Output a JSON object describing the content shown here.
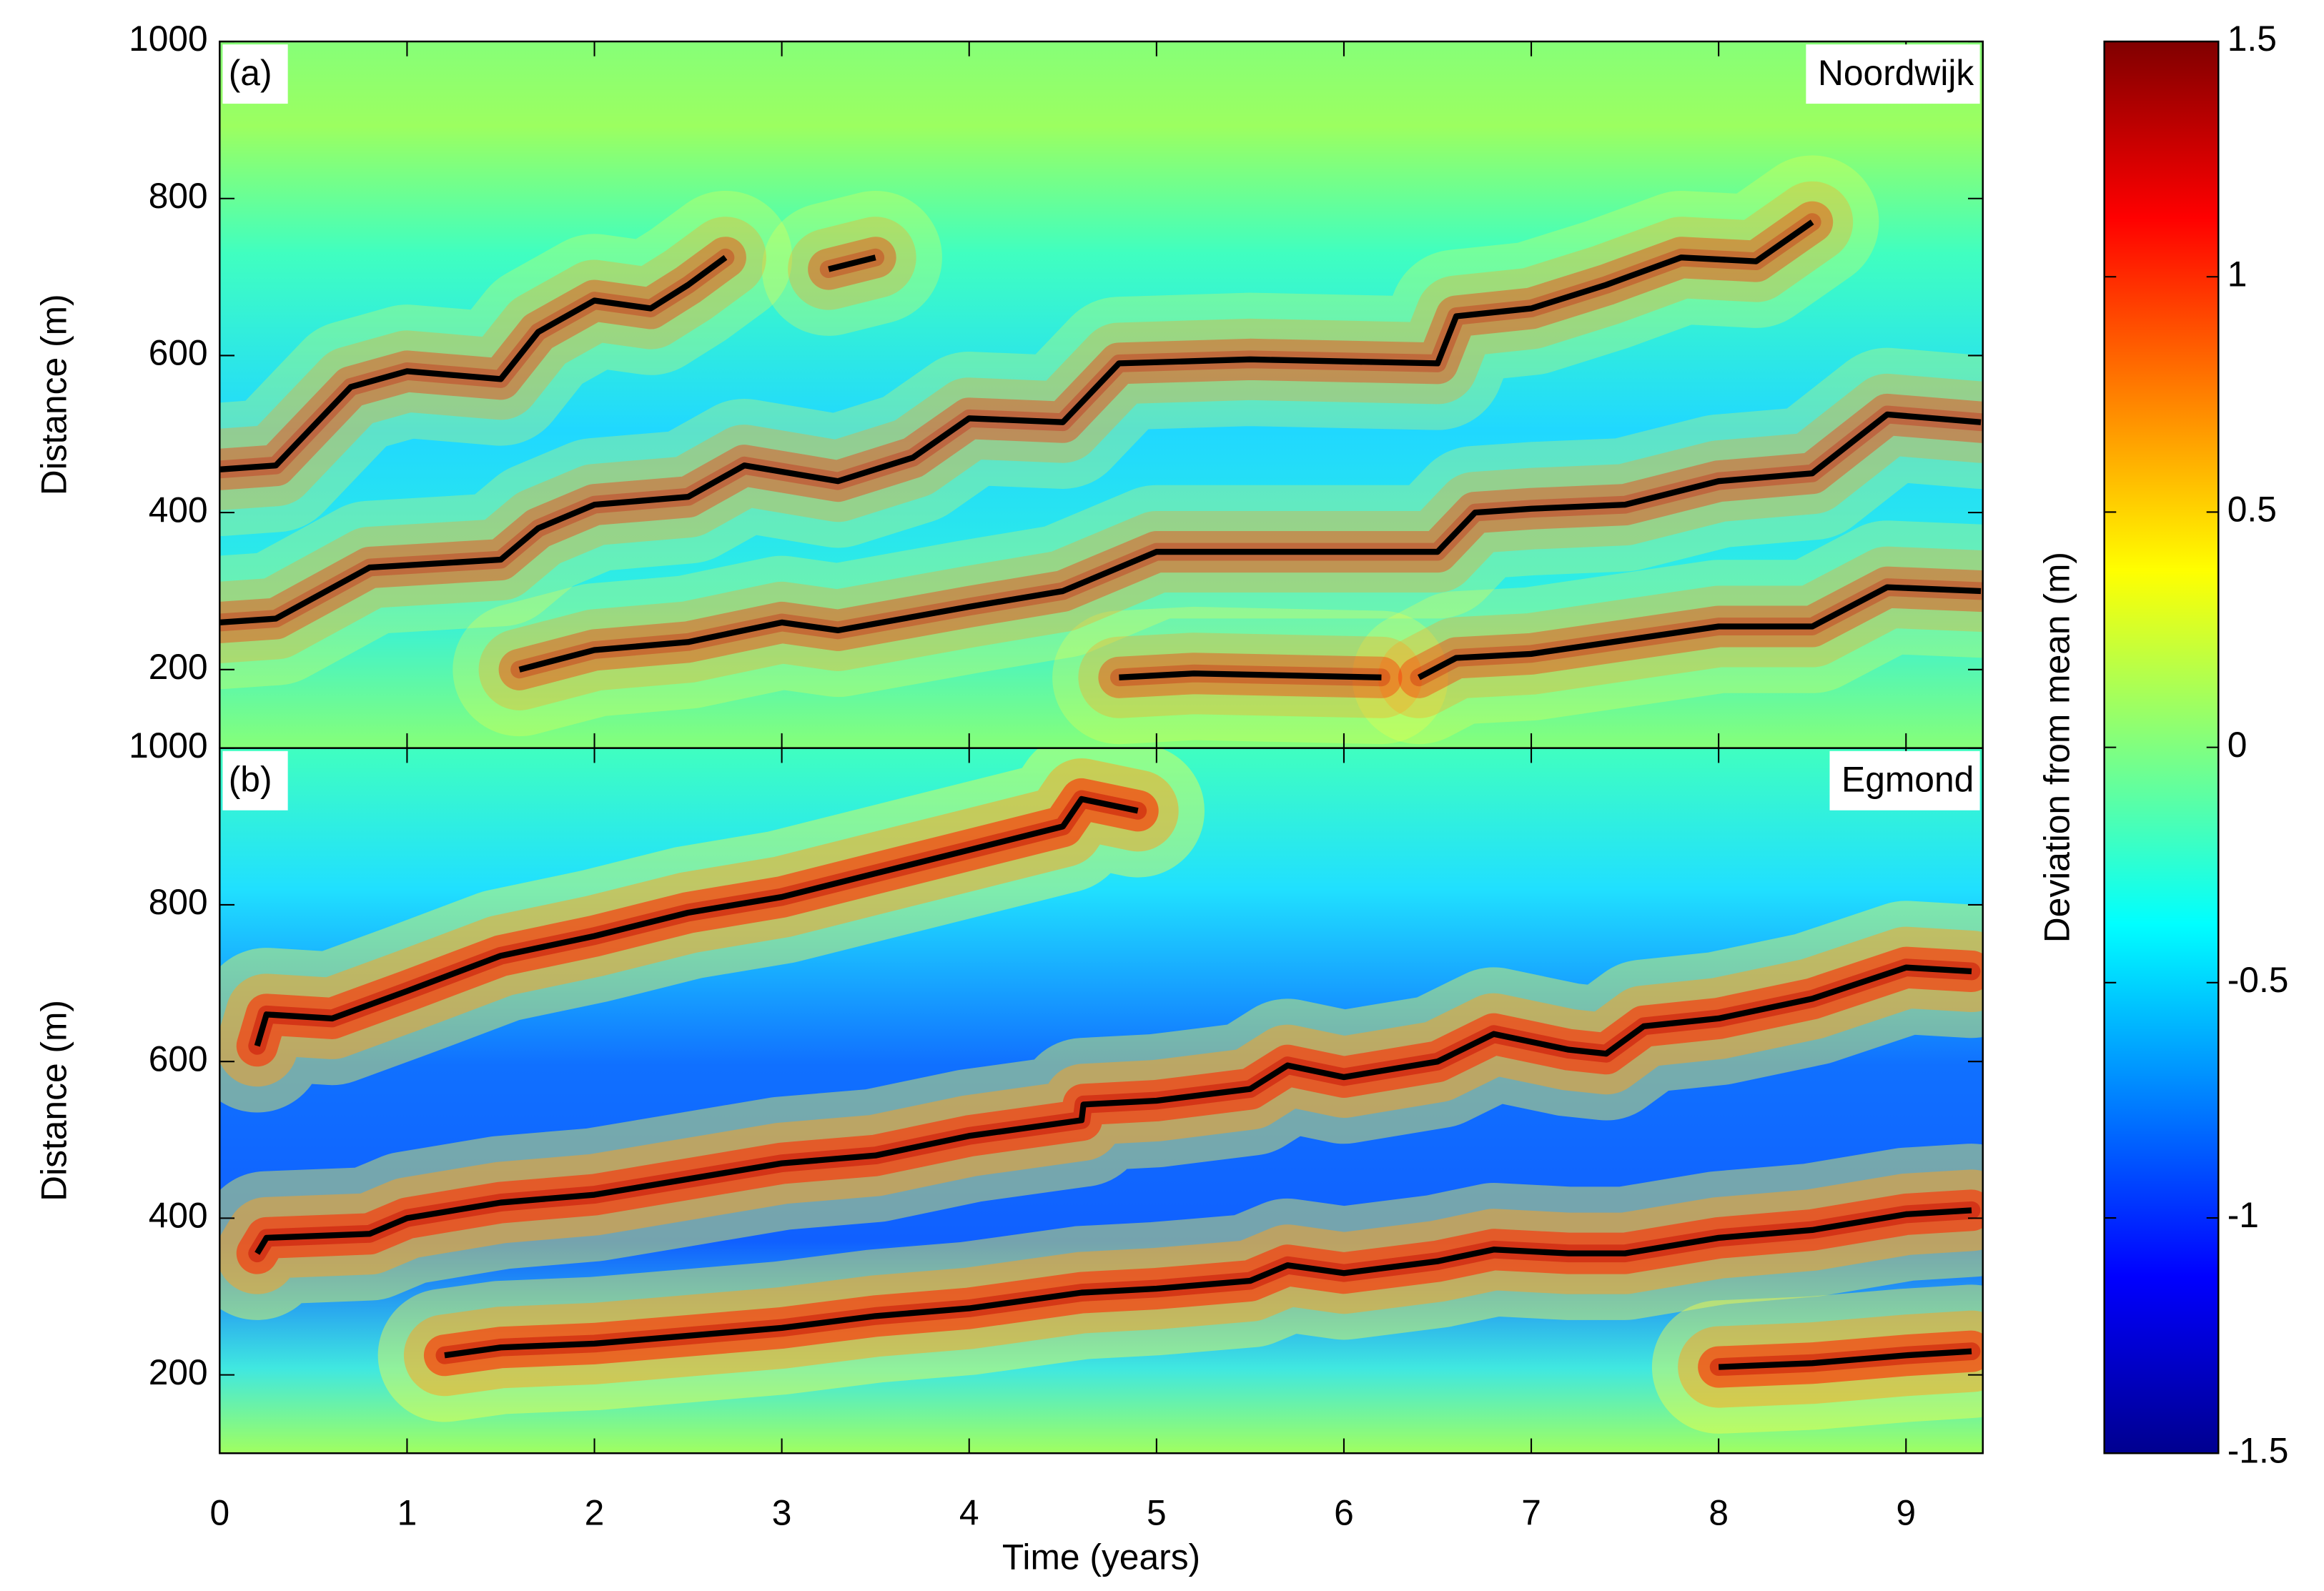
{
  "chart_data": [
    {
      "type": "line",
      "panel_label": "(a)",
      "title": "Noordwijk",
      "ylabel": "Distance (m)",
      "xlim": [
        0,
        9.41
      ],
      "ylim": [
        100,
        1000
      ],
      "xticks": [
        0,
        1,
        2,
        3,
        4,
        5,
        6,
        7,
        8,
        9
      ],
      "yticks": [
        200,
        400,
        600,
        800,
        1000
      ],
      "series": [
        {
          "color": "#000000",
          "x": [
            0,
            0.3,
            0.7,
            1,
            1.5,
            1.7,
            2,
            2.3,
            2.5,
            2.7
          ],
          "values": [
            455,
            460,
            560,
            580,
            570,
            630,
            670,
            660,
            690,
            725
          ]
        },
        {
          "color": "#000000",
          "x": [
            3.25,
            3.5
          ],
          "values": [
            710,
            725
          ]
        },
        {
          "color": "#000000",
          "x": [
            0,
            0.3,
            0.8,
            1.5,
            1.7,
            2,
            2.5,
            2.8,
            3.3,
            3.7,
            4,
            4.5,
            4.8,
            5.5,
            6.5,
            6.6,
            7,
            7.4,
            7.8,
            8.2,
            8.5
          ],
          "values": [
            260,
            265,
            330,
            340,
            380,
            410,
            420,
            460,
            440,
            470,
            520,
            515,
            590,
            595,
            590,
            650,
            660,
            690,
            725,
            720,
            770
          ]
        },
        {
          "color": "#000000",
          "x": [
            1.6,
            2,
            2.5,
            3,
            3.3,
            4,
            4.5,
            5,
            6.5,
            6.7,
            7,
            7.5,
            8,
            8.5,
            8.9,
            9.4
          ],
          "values": [
            200,
            225,
            235,
            260,
            250,
            280,
            300,
            350,
            350,
            400,
            405,
            410,
            440,
            450,
            525,
            515
          ]
        },
        {
          "color": "#000000",
          "x": [
            4.8,
            5.2,
            6.2
          ],
          "values": [
            190,
            195,
            190
          ]
        },
        {
          "color": "#000000",
          "x": [
            6.4,
            6.6,
            7,
            8,
            8.5,
            8.9,
            9.4
          ],
          "values": [
            190,
            215,
            220,
            255,
            255,
            305,
            300
          ]
        }
      ]
    },
    {
      "type": "line",
      "panel_label": "(b)",
      "title": "Egmond",
      "xlabel": "Time (years)",
      "ylabel": "Distance (m)",
      "xlim": [
        0,
        9.41
      ],
      "ylim": [
        100,
        1000
      ],
      "xticks": [
        0,
        1,
        2,
        3,
        4,
        5,
        6,
        7,
        8,
        9
      ],
      "yticks": [
        200,
        400,
        600,
        800,
        1000
      ],
      "series": [
        {
          "color": "#000000",
          "x": [
            0.2,
            0.25,
            0.6,
            1,
            1.5,
            2,
            2.5,
            3,
            3.5,
            4,
            4.5,
            4.6,
            4.9
          ],
          "values": [
            620,
            660,
            655,
            690,
            735,
            760,
            790,
            810,
            840,
            870,
            900,
            935,
            920
          ]
        },
        {
          "color": "#000000",
          "x": [
            0.2,
            0.25,
            0.8,
            1,
            1.5,
            2,
            2.5,
            3,
            3.5,
            4,
            4.6,
            4.61,
            5,
            5.5,
            5.7,
            6,
            6.5,
            6.8,
            7.2,
            7.4,
            7.6,
            8,
            8.5,
            9,
            9.35
          ],
          "values": [
            355,
            375,
            380,
            400,
            420,
            430,
            450,
            470,
            480,
            505,
            525,
            545,
            550,
            565,
            595,
            580,
            600,
            635,
            615,
            610,
            645,
            655,
            680,
            720,
            715
          ]
        },
        {
          "color": "#000000",
          "x": [
            1.2,
            1.5,
            2,
            2.5,
            3,
            3.5,
            4,
            4.6,
            5,
            5.5,
            5.7,
            6,
            6.5,
            6.8,
            7.2,
            7.5,
            8,
            8.5,
            9,
            9.35
          ],
          "values": [
            225,
            235,
            240,
            250,
            260,
            275,
            285,
            305,
            310,
            320,
            340,
            330,
            345,
            360,
            355,
            355,
            375,
            385,
            405,
            410
          ]
        },
        {
          "color": "#000000",
          "x": [
            8,
            8.5,
            9,
            9.35
          ],
          "values": [
            210,
            215,
            225,
            230
          ]
        }
      ]
    },
    {
      "type": "colorbar",
      "label": "Deviation from mean (m)",
      "colormap": "jet",
      "zlim": [
        -1.5,
        1.5
      ],
      "zticks": [
        1.5,
        1,
        0.5,
        0,
        -0.5,
        -1,
        -1.5
      ]
    }
  ]
}
